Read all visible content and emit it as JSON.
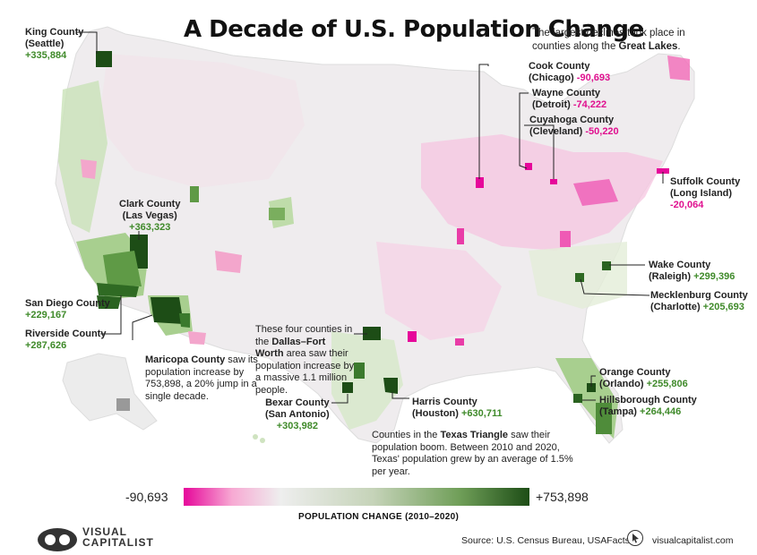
{
  "title": "A Decade of U.S. Population Change",
  "top_note": {
    "pre": "The largest declines took place in counties along the ",
    "bold": "Great Lakes",
    "post": "."
  },
  "labels": {
    "king": {
      "name": "King County",
      "sub": "(Seattle)",
      "value": "+335,884"
    },
    "clark": {
      "name": "Clark County",
      "sub": "(Las Vegas)",
      "value": "+363,323"
    },
    "sandiego": {
      "name": "San Diego County",
      "value": "+229,167"
    },
    "riverside": {
      "name": "Riverside County",
      "value": "+287,626"
    },
    "cook": {
      "name": "Cook County",
      "sub": "(Chicago)",
      "value": "-90,693"
    },
    "wayne": {
      "name": "Wayne County",
      "sub": "(Detroit)",
      "value": "-74,222"
    },
    "cuyahoga": {
      "name": "Cuyahoga County",
      "sub": "(Cleveland)",
      "value": "-50,220"
    },
    "suffolk": {
      "name": "Suffolk County",
      "sub": "(Long Island)",
      "value": "-20,064"
    },
    "wake": {
      "name": "Wake County",
      "sub": "(Raleigh)",
      "value": "+299,396"
    },
    "mecklenburg": {
      "name": "Mecklenburg County",
      "sub": "(Charlotte)",
      "value": "+205,693"
    },
    "orange": {
      "name": "Orange County",
      "sub": "(Orlando)",
      "value": "+255,806"
    },
    "hillsborough": {
      "name": "Hillsborough County",
      "sub": "(Tampa)",
      "value": "+264,446"
    },
    "bexar": {
      "name": "Bexar County",
      "sub": "(San Antonio)",
      "value": "+303,982"
    },
    "harris": {
      "name": "Harris County",
      "sub": "(Houston)",
      "value": "+630,711"
    }
  },
  "maricopa_note": {
    "bold": "Maricopa County",
    "text": " saw its population increase by 753,898, a 20% jump in a single decade."
  },
  "dfw_note": {
    "pre": "These four counties in the ",
    "bold": "Dallas–Fort Worth",
    "post": " area saw their population increase by a massive 1.1 million people."
  },
  "texas_note": {
    "pre": "Counties in the ",
    "bold": "Texas Triangle",
    "post": " saw their population boom. Between 2010 and 2020, Texas' population grew by an average of 1.5% per year."
  },
  "legend": {
    "min": "-90,693",
    "max": "+753,898",
    "title": "POPULATION CHANGE (2010–2020)",
    "min_value": -90693,
    "max_value": 753898
  },
  "colors": {
    "strong_growth": "#1d4d16",
    "growth": "#6f9e58",
    "mild_growth": "#bcd9a9",
    "neutral": "#eeeeee",
    "decline": "#f7a9d3",
    "strong_decline": "#e6079a"
  },
  "logo": {
    "line1": "VISUAL",
    "line2": "CAPITALIST"
  },
  "source": "Source: U.S. Census Bureau, USAFacts",
  "site": "visualcapitalist.com"
}
